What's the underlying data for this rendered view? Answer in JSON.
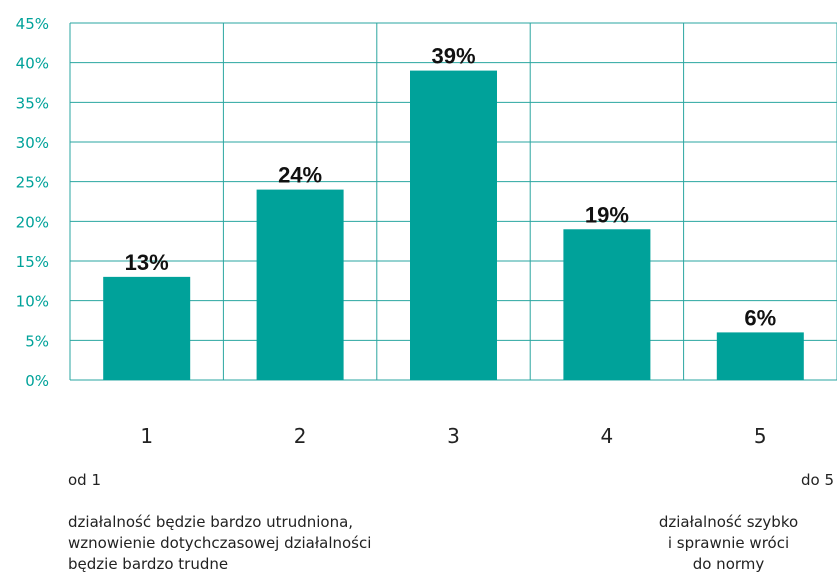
{
  "colors": {
    "bar": "#00a29a",
    "grid": "#2aa6a0",
    "axis_text": "#00a29a",
    "label_text": "#111111",
    "category_text": "#222222"
  },
  "annotations": {
    "range_start": "od 1",
    "range_end": "do 5",
    "left_description": [
      "działalność będzie bardzo utrudniona,",
      "wznowienie dotychczasowej działalności",
      "będzie bardzo trudne"
    ],
    "right_description": [
      "działalność szybko",
      "i sprawnie wróci",
      "do normy"
    ]
  },
  "chart_data": {
    "type": "bar",
    "categories": [
      "1",
      "2",
      "3",
      "4",
      "5"
    ],
    "values": [
      13,
      24,
      39,
      19,
      6
    ],
    "data_labels": [
      "13%",
      "24%",
      "39%",
      "19%",
      "6%"
    ],
    "y_ticks": [
      "0%",
      "5%",
      "10%",
      "15%",
      "20%",
      "25%",
      "30%",
      "35%",
      "40%",
      "45%"
    ],
    "ylim": [
      0,
      45
    ],
    "grid": true,
    "title": "",
    "xlabel": "",
    "ylabel": ""
  }
}
